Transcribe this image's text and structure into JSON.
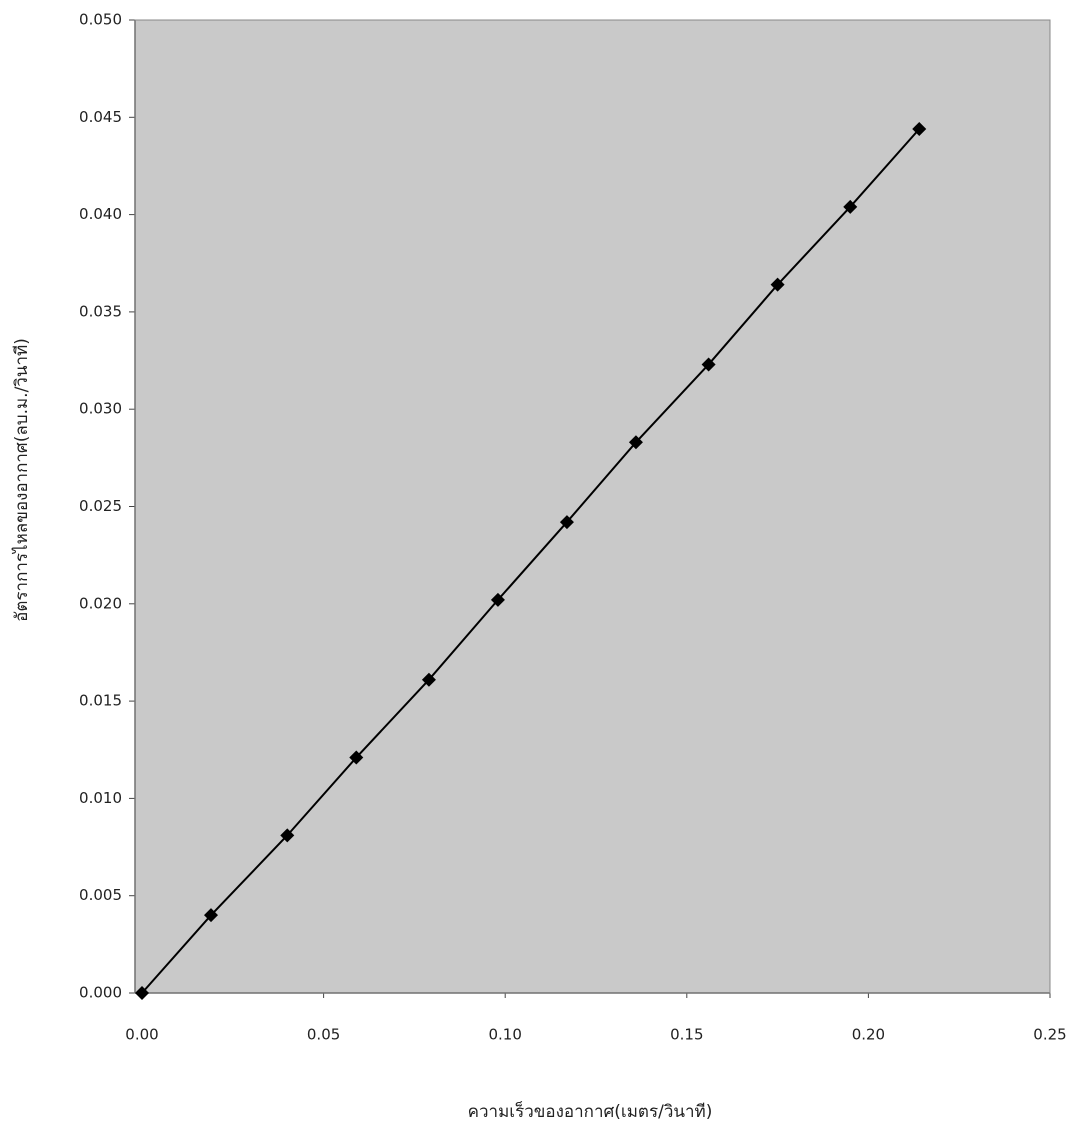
{
  "chart_data": {
    "type": "line",
    "x_label": "ความเร็วของอากาศ(เมตร/วินาที)",
    "y_label": "อัตราการไหลของอากาศ(ลบ.ม./วินาที)",
    "x": [
      0,
      0.019,
      0.04,
      0.059,
      0.079,
      0.098,
      0.117,
      0.136,
      0.156,
      0.175,
      0.195,
      0.214
    ],
    "series": [
      {
        "color": "#000000",
        "values": [
          0,
          0.004,
          0.0081,
          0.0121,
          0.0161,
          0.0202,
          0.0242,
          0.0283,
          0.0323,
          0.0364,
          0.0404,
          0.0444
        ]
      }
    ],
    "xlim": [
      0,
      0.25
    ],
    "xticks": [
      {
        "value": 0,
        "label": "0.00"
      },
      0.05,
      {
        "value": 0.1,
        "label": "0.10"
      },
      0.15,
      {
        "value": 0.2,
        "label": "0.20"
      },
      0.25
    ],
    "ylim": [
      0,
      0.05
    ],
    "yticks": [
      {
        "value": 0,
        "label": "0.000"
      },
      0.005,
      {
        "value": 0.01,
        "label": "0.010"
      },
      0.015,
      {
        "value": 0.02,
        "label": "0.020"
      },
      0.025,
      {
        "value": 0.03,
        "label": "0.030"
      },
      0.035,
      {
        "value": 0.04,
        "label": "0.040"
      },
      0.045,
      {
        "value": 0.05,
        "label": "0.050"
      }
    ],
    "grid": false
  }
}
